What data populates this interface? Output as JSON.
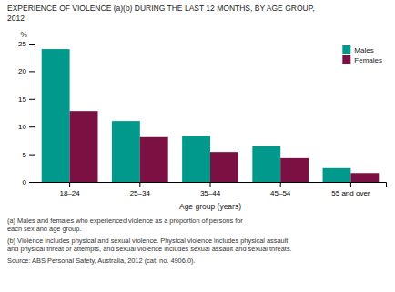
{
  "chart_data": {
    "type": "bar",
    "title": "EXPERIENCE OF VIOLENCE (a)(b) DURING THE LAST 12 MONTHS, BY AGE GROUP,\n2012",
    "x_label": "Age group (years)",
    "y_label": "%",
    "categories": [
      "18–24",
      "25–34",
      "35–44",
      "45–54",
      "55 and over"
    ],
    "series": [
      {
        "name": "Males",
        "color": "#00998C",
        "values": [
          24.0,
          11.0,
          8.3,
          6.5,
          2.5
        ]
      },
      {
        "name": "Females",
        "color": "#7B1042",
        "values": [
          12.8,
          8.1,
          5.4,
          4.3,
          1.6
        ]
      }
    ],
    "ylim": [
      0,
      25
    ],
    "yticks": [
      0,
      5,
      10,
      15,
      20,
      25
    ],
    "grid": false,
    "legend": "upper right",
    "annotations": [
      "(a) Males and females who experienced violence as a proportion of persons for\neach sex and age group.",
      "(b) Violence includes physical and sexual violence. Physical violence includes physical assault\nand physical threat or attempts, and sexual violence includes sexual assault and sexual threats.",
      "Source: ABS Personal Safety, Australia, 2012 (cat. no. 4906.0)."
    ]
  }
}
